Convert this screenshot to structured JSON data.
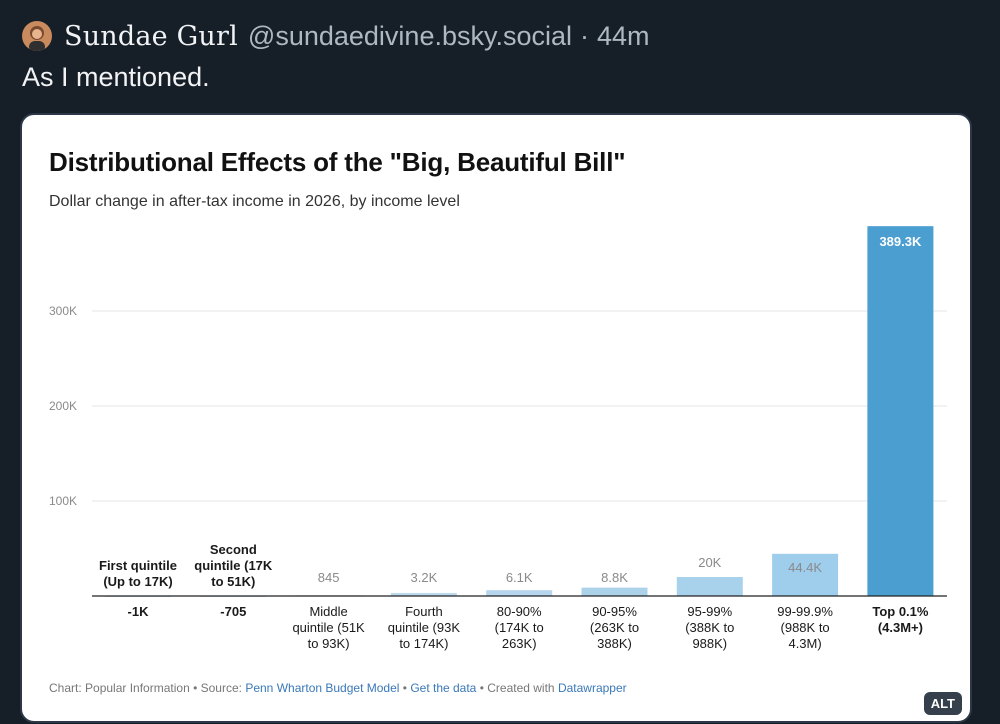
{
  "post": {
    "author_name": "Sundae Gurl",
    "handle": "@sundaedivine.bsky.social",
    "separator": "·",
    "time": "44m",
    "text": "As I mentioned.",
    "alt_badge": "ALT"
  },
  "chart_data": {
    "type": "bar",
    "title": "Distributional Effects of the \"Big, Beautiful Bill\"",
    "subtitle": "Dollar change in after-tax income in 2026, by income level",
    "xlabel": "",
    "ylabel": "",
    "ylim": [
      0,
      400000
    ],
    "yticks": [
      {
        "value": 100000,
        "label": "100K"
      },
      {
        "value": 200000,
        "label": "200K"
      },
      {
        "value": 300000,
        "label": "300K"
      }
    ],
    "bars": [
      {
        "value": -1000,
        "value_label": "-1K",
        "category": [
          "First quintile",
          "(Up to 17K)"
        ],
        "color": "#cfe4f1"
      },
      {
        "value": -705,
        "value_label": "-705",
        "category": [
          "Second",
          "quintile (17K",
          "to 51K)"
        ],
        "color": "#cfe4f1"
      },
      {
        "value": 845,
        "value_label": "845",
        "category": [
          "Middle",
          "quintile (51K",
          "to 93K)"
        ],
        "color": "#cfe4f1"
      },
      {
        "value": 3200,
        "value_label": "3.2K",
        "category": [
          "Fourth",
          "quintile (93K",
          "to 174K)"
        ],
        "color": "#bddaed"
      },
      {
        "value": 6100,
        "value_label": "6.1K",
        "category": [
          "80-90%",
          "(174K to",
          "263K)"
        ],
        "color": "#b5d6ec"
      },
      {
        "value": 8800,
        "value_label": "8.8K",
        "category": [
          "90-95%",
          "(263K to",
          "388K)"
        ],
        "color": "#acd2ea"
      },
      {
        "value": 20000,
        "value_label": "20K",
        "category": [
          "95-99%",
          "(388K to",
          "988K)"
        ],
        "color": "#a8d1ec"
      },
      {
        "value": 44400,
        "value_label": "44.4K",
        "category": [
          "99-99.9%",
          "(988K to",
          "4.3M)"
        ],
        "color": "#9fcdec"
      },
      {
        "value": 389300,
        "value_label": "389.3K",
        "category": [
          "Top 0.1%",
          "(4.3M+)"
        ],
        "color": "#4a9ed0"
      }
    ]
  },
  "footer": {
    "chart_credit": "Chart: Popular Information",
    "sep": " • ",
    "source_prefix": "Source: ",
    "source_link": "Penn Wharton Budget Model",
    "get_data": "Get the data",
    "created_prefix": "Created with ",
    "created_link": "Datawrapper"
  }
}
